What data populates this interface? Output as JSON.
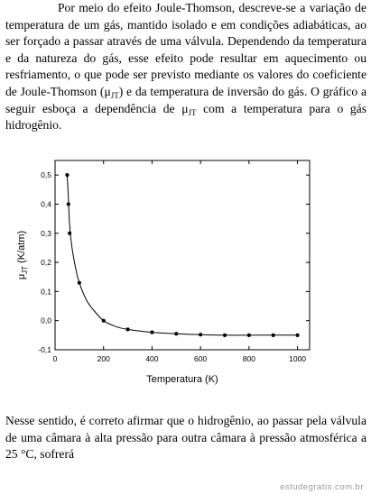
{
  "intro": {
    "text_before_sub_1": "Por meio do efeito Joule-Thomson, descreve-se a variação de temperatura de um gás, mantido isolado e em condições adiabáticas, ao ser forçado a passar através de uma válvula. Dependendo da temperatura e da natureza do gás, esse efeito pode resultar em aquecimento ou resfriamento, o que pode ser previsto mediante os valores do coeficiente de Joule-Thomson (μ",
    "sub_1": "JT",
    "text_between": ") e da temperatura de inversão do gás. O gráfico a seguir esboça a dependência de μ",
    "sub_2": "JT",
    "text_after": " com a temperatura para o gás hidrogênio."
  },
  "chart_data": {
    "type": "scatter",
    "title": "",
    "xlabel": "Temperatura (K)",
    "ylabel_main": "μ",
    "ylabel_sub": "JT",
    "ylabel_unit": " (K/atm)",
    "xlim": [
      0,
      1050
    ],
    "ylim": [
      -0.1,
      0.55
    ],
    "x_ticks": [
      0,
      200,
      400,
      600,
      800,
      1000
    ],
    "x_tick_labels": [
      "0",
      "200",
      "400",
      "600",
      "800",
      "1000"
    ],
    "y_ticks": [
      -0.1,
      0.0,
      0.1,
      0.2,
      0.3,
      0.4,
      0.5
    ],
    "y_tick_labels": [
      "-0,1",
      "0,0",
      "0,1",
      "0,2",
      "0,3",
      "0,4",
      "0,5"
    ],
    "grid": false,
    "legend": "none",
    "series": [
      {
        "points": [
          {
            "x": 50,
            "y": 0.5
          },
          {
            "x": 55,
            "y": 0.4
          },
          {
            "x": 60,
            "y": 0.3
          },
          {
            "x": 100,
            "y": 0.13
          },
          {
            "x": 200,
            "y": 0.0
          },
          {
            "x": 300,
            "y": -0.03
          },
          {
            "x": 400,
            "y": -0.04
          },
          {
            "x": 500,
            "y": -0.045
          },
          {
            "x": 600,
            "y": -0.048
          },
          {
            "x": 700,
            "y": -0.05
          },
          {
            "x": 800,
            "y": -0.05
          },
          {
            "x": 900,
            "y": -0.05
          },
          {
            "x": 1000,
            "y": -0.05
          }
        ],
        "curve": [
          {
            "x": 50,
            "y": 0.5
          },
          {
            "x": 55,
            "y": 0.42
          },
          {
            "x": 60,
            "y": 0.33
          },
          {
            "x": 70,
            "y": 0.25
          },
          {
            "x": 85,
            "y": 0.18
          },
          {
            "x": 100,
            "y": 0.13
          },
          {
            "x": 130,
            "y": 0.07
          },
          {
            "x": 160,
            "y": 0.035
          },
          {
            "x": 200,
            "y": 0.0
          },
          {
            "x": 250,
            "y": -0.02
          },
          {
            "x": 300,
            "y": -0.03
          },
          {
            "x": 400,
            "y": -0.04
          },
          {
            "x": 500,
            "y": -0.045
          },
          {
            "x": 600,
            "y": -0.048
          },
          {
            "x": 700,
            "y": -0.05
          },
          {
            "x": 850,
            "y": -0.05
          },
          {
            "x": 1000,
            "y": -0.05
          }
        ],
        "color": "#000000"
      }
    ]
  },
  "closing": {
    "text": "Nesse sentido, é correto afirmar que o hidrogênio, ao passar pela válvula de uma câmara à alta pressão para outra câmara à pressão atmosférica a 25 °C, sofrerá"
  },
  "watermark": "estudegratis.com.br"
}
